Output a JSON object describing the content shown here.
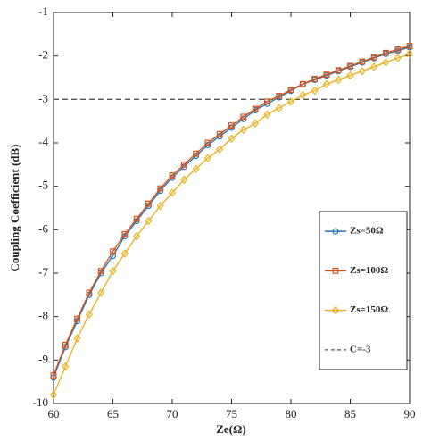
{
  "chart_data": {
    "type": "line",
    "x_label": "Ze(Ω)",
    "y_label": "Coupling Coefficient (dB)",
    "x": [
      60,
      61,
      62,
      63,
      64,
      65,
      66,
      67,
      68,
      69,
      70,
      71,
      72,
      73,
      74,
      75,
      76,
      77,
      78,
      79,
      80,
      81,
      82,
      83,
      84,
      85,
      86,
      87,
      88,
      89,
      90
    ],
    "series": [
      {
        "name": "Zs=50Ω",
        "color": "#2a7ab8",
        "marker": "circle",
        "values": [
          -9.4,
          -8.7,
          -8.1,
          -7.5,
          -7.0,
          -6.6,
          -6.15,
          -5.8,
          -5.45,
          -5.1,
          -4.8,
          -4.55,
          -4.3,
          -4.05,
          -3.85,
          -3.65,
          -3.45,
          -3.25,
          -3.1,
          -2.95,
          -2.8,
          -2.65,
          -2.55,
          -2.45,
          -2.35,
          -2.25,
          -2.15,
          -2.05,
          -1.95,
          -1.88,
          -1.8
        ]
      },
      {
        "name": "Zs=100Ω",
        "color": "#d95319",
        "marker": "square",
        "values": [
          -9.35,
          -8.65,
          -8.05,
          -7.45,
          -6.95,
          -6.5,
          -6.1,
          -5.75,
          -5.4,
          -5.05,
          -4.75,
          -4.5,
          -4.25,
          -4.0,
          -3.8,
          -3.6,
          -3.4,
          -3.22,
          -3.05,
          -2.92,
          -2.78,
          -2.65,
          -2.53,
          -2.43,
          -2.33,
          -2.23,
          -2.13,
          -2.03,
          -1.93,
          -1.85,
          -1.77
        ]
      },
      {
        "name": "Zs=150Ω",
        "color": "#edb120",
        "marker": "diamond",
        "values": [
          -9.8,
          -9.15,
          -8.5,
          -7.95,
          -7.45,
          -6.95,
          -6.55,
          -6.15,
          -5.8,
          -5.45,
          -5.15,
          -4.85,
          -4.6,
          -4.35,
          -4.15,
          -3.9,
          -3.7,
          -3.55,
          -3.35,
          -3.2,
          -3.05,
          -2.9,
          -2.8,
          -2.65,
          -2.55,
          -2.45,
          -2.35,
          -2.25,
          -2.15,
          -2.05,
          -1.95
        ]
      }
    ],
    "reference_line": {
      "name": "C=-3",
      "value": -3,
      "color": "#555555",
      "dashed": true
    },
    "xlim": [
      60,
      90
    ],
    "ylim": [
      -10,
      -1
    ],
    "xticks": [
      60,
      65,
      70,
      75,
      80,
      85,
      90
    ],
    "yticks": [
      -10,
      -9,
      -8,
      -7,
      -6,
      -5,
      -4,
      -3,
      -2,
      -1
    ],
    "grid": false,
    "legend": "lower right"
  }
}
